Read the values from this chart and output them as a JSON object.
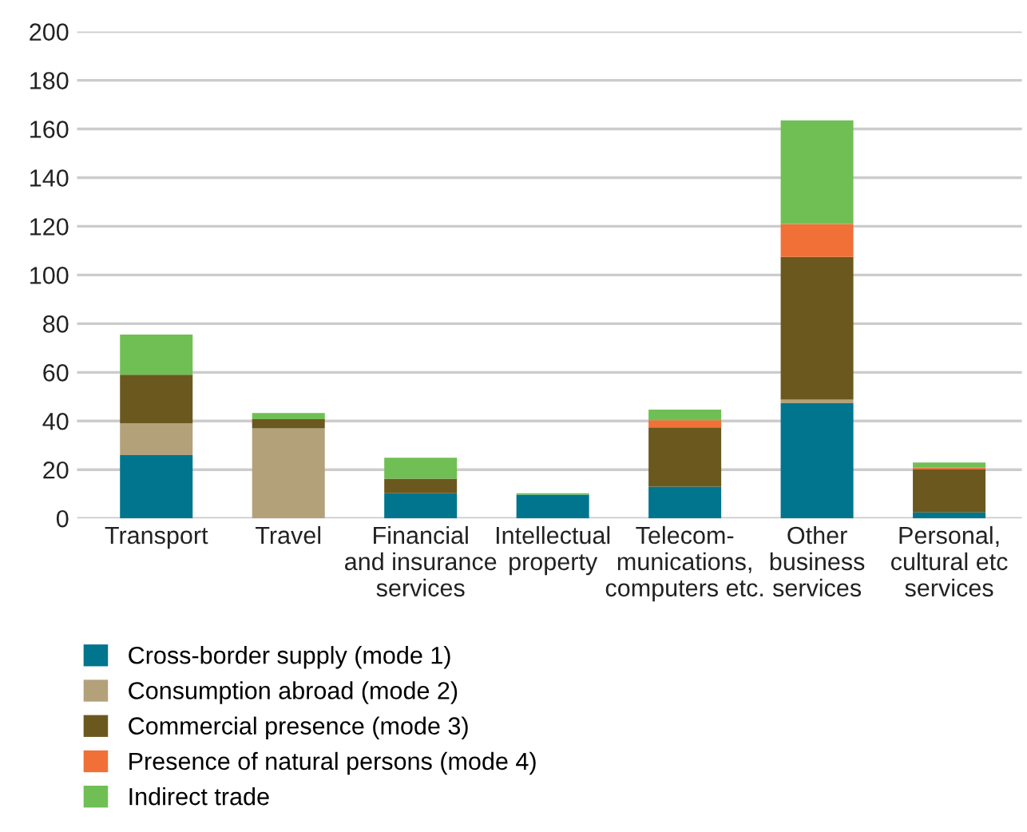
{
  "chart_data": {
    "type": "bar",
    "stacked": true,
    "categories": [
      "Transport",
      "Travel",
      "Financial\nand insurance\nservices",
      "Intellectual\nproperty",
      "Telecom-\nmunications,\ncomputers etc.",
      "Other\nbusiness\nservices",
      "Personal,\ncultural etc\nservices"
    ],
    "series": [
      {
        "name": "Cross-border supply (mode 1)",
        "color": "#00758d",
        "values": [
          26,
          0,
          10.3,
          9.7,
          13,
          47.3,
          2.4
        ]
      },
      {
        "name": "Consumption abroad (mode 2)",
        "color": "#b3a17a",
        "values": [
          13,
          37,
          0,
          0,
          0,
          1.5,
          0
        ]
      },
      {
        "name": "Commercial presence (mode 3)",
        "color": "#6b581f",
        "values": [
          20,
          3.7,
          6,
          0,
          24.4,
          58.6,
          17.8
        ]
      },
      {
        "name": "Presence of natural persons (mode 4)",
        "color": "#f07038",
        "values": [
          0,
          0,
          0,
          0,
          2.9,
          13.6,
          0.7
        ]
      },
      {
        "name": "Indirect trade",
        "color": "#70bf54",
        "values": [
          16.5,
          2.6,
          8.6,
          0.6,
          4.4,
          42.5,
          2
        ]
      }
    ],
    "ylim": [
      0,
      200
    ],
    "yticks": [
      0,
      20,
      40,
      60,
      80,
      100,
      120,
      140,
      160,
      180,
      200
    ],
    "grid": "y",
    "legend": "bottom"
  }
}
